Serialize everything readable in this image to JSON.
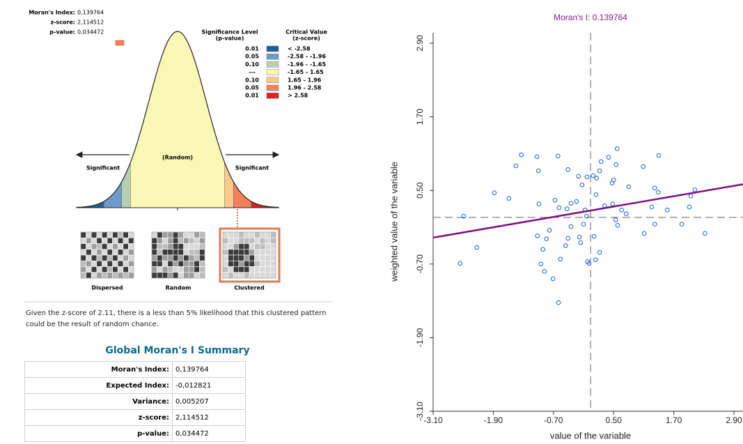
{
  "report": {
    "stats": [
      {
        "label": "Moran's Index:",
        "value": "0,139764"
      },
      {
        "label": "z-score:",
        "value": "2,114512"
      },
      {
        "label": "p-value:",
        "value": "0,034472"
      }
    ],
    "legend": {
      "header_p": [
        "Significance Level",
        "(p-value)"
      ],
      "header_z": [
        "Critical Value",
        "(z-score)"
      ],
      "rows": [
        {
          "p": "0.01",
          "range": "< -2.58",
          "color": "#1f5e9c",
          "z_from": null,
          "z_to": -2.58
        },
        {
          "p": "0.05",
          "range": "-2.58 - -1.96",
          "color": "#6d9cc9",
          "z_from": -2.58,
          "z_to": -1.96
        },
        {
          "p": "0.10",
          "range": "-1.96 - -1.65",
          "color": "#b4cfb1",
          "z_from": -1.96,
          "z_to": -1.65
        },
        {
          "p": "---",
          "range": "-1.65 - 1.65",
          "color": "#fbf8b6",
          "z_from": -1.65,
          "z_to": 1.65
        },
        {
          "p": "0.10",
          "range": "1.65 - 1.96",
          "color": "#fcc88d",
          "z_from": 1.65,
          "z_to": 1.96
        },
        {
          "p": "0.05",
          "range": "1.96 - 2.58",
          "color": "#f3815b",
          "z_from": 1.96,
          "z_to": 2.58
        },
        {
          "p": "0.01",
          "range": "> 2.58",
          "color": "#d7261f",
          "z_from": 2.58,
          "z_to": null
        }
      ]
    },
    "curve_labels": {
      "left": "Significant",
      "center": "(Random)",
      "right": "Significant"
    },
    "patterns": [
      "Dispersed",
      "Random",
      "Clustered"
    ],
    "conclusion": "Given the z-score of 2.11, there is a less than 5% likelihood that this clustered pattern could be the result of random chance."
  },
  "summary": {
    "title": "Global Moran's I Summary",
    "rows": [
      [
        "Moran's Index:",
        "0,139764"
      ],
      [
        "Expected Index:",
        "-0,012821"
      ],
      [
        "Variance:",
        "0,005207"
      ],
      [
        "z-score:",
        "2,114512"
      ],
      [
        "p-value:",
        "0,034472"
      ]
    ]
  },
  "chart_data": {
    "type": "scatter",
    "title": "Moran's I: 0.139764",
    "x_label": "value of the variable",
    "y_label": "weighted value of the variable",
    "color": "#1a5fd8",
    "xlim": [
      -3.1,
      3.08
    ],
    "ylim": [
      -3.1,
      3.07
    ],
    "xticks": [
      {
        "value": -3.1,
        "label": "-3.10"
      },
      {
        "value": -1.9,
        "label": "-1.90"
      },
      {
        "value": -0.7,
        "label": "-0.70"
      },
      {
        "value": 0.5,
        "label": "0.50"
      },
      {
        "value": 1.7,
        "label": "1.70"
      },
      {
        "value": 2.9,
        "label": "2.90"
      }
    ],
    "yticks": [
      {
        "value": -3.1,
        "label": "-3.10"
      },
      {
        "value": -1.9,
        "label": "-1.90"
      },
      {
        "value": -0.7,
        "label": "-0.70"
      },
      {
        "value": 0.5,
        "label": "0.50"
      },
      {
        "value": 1.7,
        "label": "1.70"
      },
      {
        "value": 2.9,
        "label": "2.90"
      }
    ],
    "grid": false,
    "mean_x": 0.04,
    "mean_y": 0.06,
    "x": [
      -2.49,
      -2.56,
      -2.23,
      -1.88,
      -1.59,
      -1.45,
      -1.34,
      -1.03,
      -1.0,
      -0.99,
      -0.95,
      -1.02,
      -0.91,
      -0.88,
      -0.84,
      -0.78,
      -0.71,
      -0.67,
      -0.61,
      -0.59,
      -0.6,
      -0.46,
      -0.43,
      -0.41,
      -0.35,
      -0.41,
      -0.24,
      -0.13,
      -0.2,
      -0.18,
      -0.07,
      -0.03,
      -0.02,
      0.01,
      -0.04,
      -0.1,
      0.11,
      0.09,
      0.16,
      0.22,
      0.25,
      0.15,
      0.22,
      0.32,
      0.4,
      0.47,
      0.5,
      0.48,
      0.54,
      0.55,
      0.57,
      0.58,
      0.66,
      0.75,
      0.8,
      1.09,
      1.11,
      1.26,
      1.32,
      1.32,
      1.4,
      1.39,
      1.57,
      1.86,
      2.01,
      2.04,
      2.12,
      2.32,
      -0.16,
      0.14,
      -0.35,
      -0.56
    ],
    "values": [
      0.08,
      -0.69,
      -0.43,
      0.46,
      0.37,
      0.9,
      1.08,
      1.05,
      0.82,
      0.28,
      -0.7,
      -0.24,
      -0.46,
      -0.82,
      -0.29,
      -0.15,
      -0.94,
      0.34,
      1.06,
      0.22,
      -1.33,
      -0.4,
      0.2,
      -0.28,
      -0.09,
      0.84,
      0.32,
      0.59,
      0.73,
      -0.26,
      0.18,
      0.72,
      -0.66,
      -0.69,
      0.08,
      -0.05,
      -0.25,
      0.74,
      0.7,
      0.82,
      0.97,
      0.43,
      -0.51,
      0.25,
      1.04,
      0.62,
      0.67,
      0.28,
      0.02,
      0.92,
      1.18,
      -0.07,
      0.18,
      0.12,
      0.56,
      0.89,
      -0.2,
      0.23,
      -0.05,
      0.54,
      1.07,
      0.47,
      0.18,
      -0.05,
      0.23,
      0.41,
      0.51,
      -0.2,
      -0.35,
      -0.63,
      0.29,
      -0.62
    ],
    "trend": {
      "color": "#7b1080",
      "x": [
        -3.1,
        3.08
      ],
      "values": [
        -0.27,
        0.6
      ]
    },
    "title_color": "#8b1a8b"
  }
}
